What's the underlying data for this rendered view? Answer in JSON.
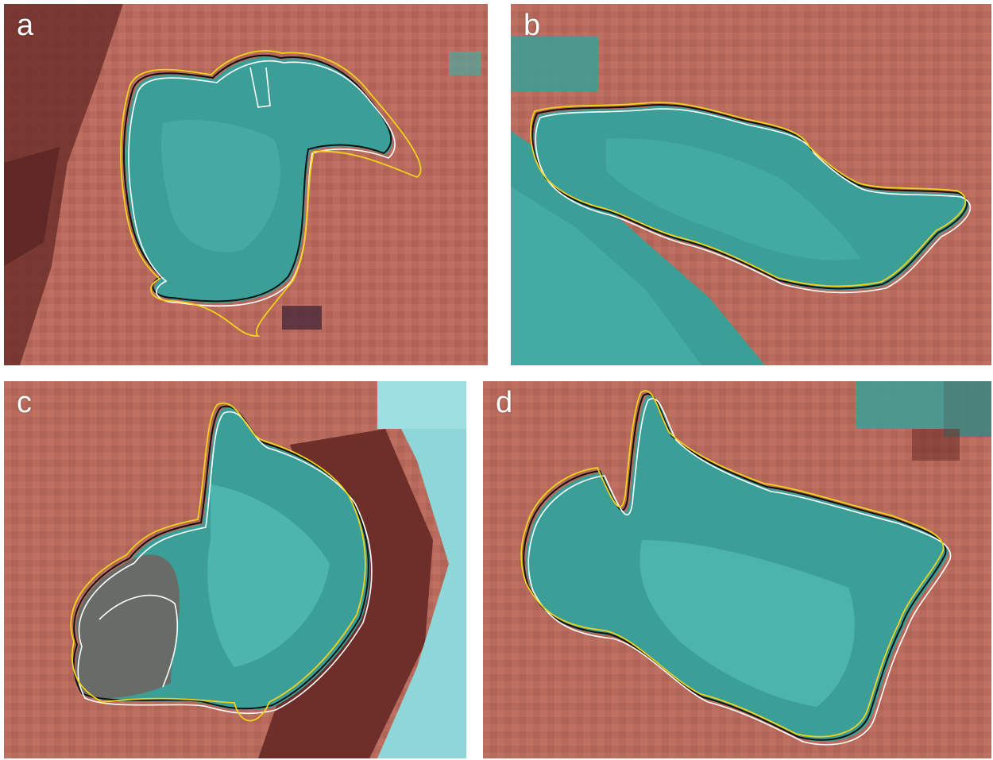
{
  "panels": [
    {
      "id": "a",
      "label": "a"
    },
    {
      "id": "b",
      "label": "b"
    },
    {
      "id": "c",
      "label": "c"
    },
    {
      "id": "d",
      "label": "d"
    }
  ],
  "colors": {
    "terrain": "#b86a5c",
    "terrain_dark": "#6e2f2a",
    "lake": "#3b9f98",
    "lake_light": "#5cc4bd",
    "ice": "#8fd6d8",
    "outline_black": "#111111",
    "outline_white": "#ffffff",
    "outline_yellow": "#f2d21a"
  }
}
